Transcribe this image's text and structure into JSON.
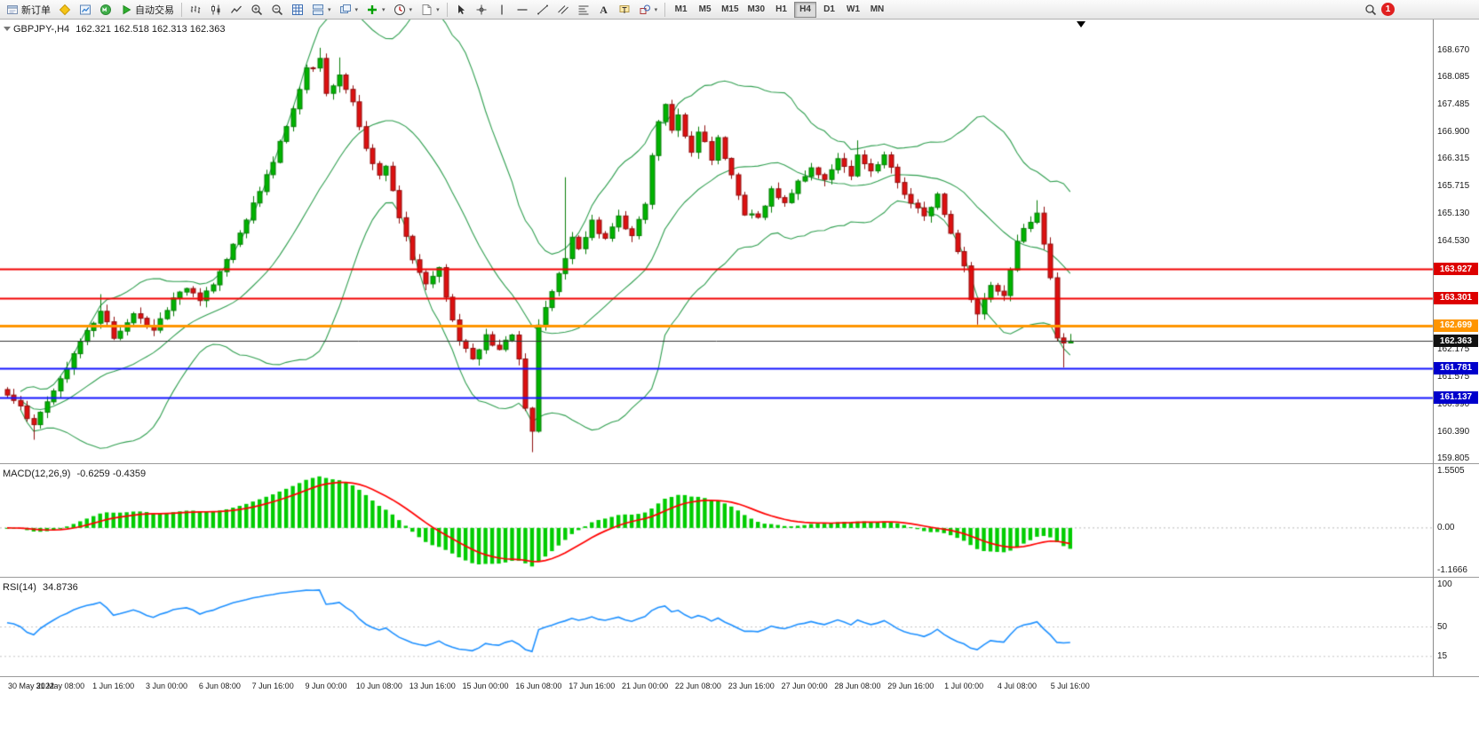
{
  "toolbar": {
    "new_order_label": "新订单",
    "auto_trading_label": "自动交易",
    "timeframes": [
      "M1",
      "M5",
      "M15",
      "M30",
      "H1",
      "H4",
      "D1",
      "W1",
      "MN"
    ],
    "active_timeframe": "H4",
    "notification_count": "1",
    "icons": [
      "new-order",
      "metaeditor",
      "market-watch",
      "mql5",
      "auto-trading",
      "bar-chart",
      "candlestick-chart",
      "line-chart",
      "zoom-in",
      "zoom-out",
      "grid",
      "tile-windows",
      "cascade-windows",
      "add-indicator",
      "periods",
      "templates",
      "cursor",
      "crosshair",
      "vertical-line",
      "horizontal-line",
      "trendline",
      "channel",
      "fibonacci",
      "text",
      "text-label",
      "shapes",
      "search",
      "notifications"
    ]
  },
  "chart": {
    "symbol_period": "GBPJPY-,H4",
    "ohlc_text": "162.321 162.518 162.313 162.363",
    "macd_name": "MACD(12,26,9)",
    "macd_values": "-0.6259 -0.4359",
    "rsi_name": "RSI(14)",
    "rsi_value": "34.8736"
  },
  "chart_data": {
    "type": "candlestick",
    "symbol": "GBPJPY-",
    "timeframe": "H4",
    "candle_count": 161,
    "ohlc_last": {
      "open": 162.321,
      "high": 162.518,
      "low": 162.313,
      "close": 162.363
    },
    "ylim": [
      159.71,
      169.344
    ],
    "noise_seed": 97,
    "price_waypoints": [
      [
        0,
        161.25
      ],
      [
        2,
        160.9
      ],
      [
        4,
        160.55
      ],
      [
        6,
        161.05
      ],
      [
        9,
        161.8
      ],
      [
        12,
        162.55
      ],
      [
        14,
        163.05
      ],
      [
        16,
        162.4
      ],
      [
        19,
        162.9
      ],
      [
        22,
        162.6
      ],
      [
        25,
        163.3
      ],
      [
        27,
        163.55
      ],
      [
        29,
        163.3
      ],
      [
        31,
        163.6
      ],
      [
        33,
        164.15
      ],
      [
        36,
        165.05
      ],
      [
        39,
        165.95
      ],
      [
        41,
        166.65
      ],
      [
        43,
        167.35
      ],
      [
        45,
        168.25
      ],
      [
        47,
        168.45
      ],
      [
        48,
        167.7
      ],
      [
        50,
        168.15
      ],
      [
        52,
        167.55
      ],
      [
        54,
        166.5
      ],
      [
        56,
        165.95
      ],
      [
        57,
        166.2
      ],
      [
        59,
        165.1
      ],
      [
        61,
        164.15
      ],
      [
        63,
        163.6
      ],
      [
        65,
        163.9
      ],
      [
        66,
        163.35
      ],
      [
        68,
        162.4
      ],
      [
        70,
        162.0
      ],
      [
        72,
        162.45
      ],
      [
        74,
        162.15
      ],
      [
        76,
        162.5
      ],
      [
        77,
        161.95
      ],
      [
        78,
        160.95
      ],
      [
        79,
        160.45
      ],
      [
        80,
        162.75
      ],
      [
        82,
        163.45
      ],
      [
        84,
        164.15
      ],
      [
        85,
        164.6
      ],
      [
        86,
        164.35
      ],
      [
        88,
        164.95
      ],
      [
        90,
        164.55
      ],
      [
        92,
        165.05
      ],
      [
        94,
        164.65
      ],
      [
        96,
        165.35
      ],
      [
        97,
        166.35
      ],
      [
        98,
        167.15
      ],
      [
        99,
        167.5
      ],
      [
        100,
        166.95
      ],
      [
        101,
        167.25
      ],
      [
        103,
        166.45
      ],
      [
        104,
        166.95
      ],
      [
        106,
        166.35
      ],
      [
        107,
        166.75
      ],
      [
        109,
        165.95
      ],
      [
        111,
        165.15
      ],
      [
        113,
        165.0
      ],
      [
        115,
        165.65
      ],
      [
        117,
        165.4
      ],
      [
        119,
        165.8
      ],
      [
        121,
        166.15
      ],
      [
        123,
        165.85
      ],
      [
        125,
        166.3
      ],
      [
        127,
        165.95
      ],
      [
        128,
        166.45
      ],
      [
        130,
        166.05
      ],
      [
        132,
        166.35
      ],
      [
        134,
        165.85
      ],
      [
        136,
        165.35
      ],
      [
        138,
        165.05
      ],
      [
        140,
        165.5
      ],
      [
        142,
        164.65
      ],
      [
        144,
        163.95
      ],
      [
        145,
        163.25
      ],
      [
        146,
        162.95
      ],
      [
        148,
        163.55
      ],
      [
        150,
        163.35
      ],
      [
        151,
        163.95
      ],
      [
        152,
        164.55
      ],
      [
        154,
        164.95
      ],
      [
        155,
        165.1
      ],
      [
        156,
        164.45
      ],
      [
        157,
        163.7
      ],
      [
        158,
        162.45
      ],
      [
        159,
        162.05
      ],
      [
        160,
        162.36
      ]
    ],
    "spikes": [
      {
        "i": 4,
        "l": 160.22
      },
      {
        "i": 14,
        "h": 163.38
      },
      {
        "i": 47,
        "h": 168.73
      },
      {
        "i": 50,
        "h": 168.52
      },
      {
        "i": 65,
        "h": 163.98
      },
      {
        "i": 79,
        "l": 159.95
      },
      {
        "i": 84,
        "h": 165.92
      },
      {
        "i": 128,
        "h": 166.72
      },
      {
        "i": 146,
        "l": 162.72
      },
      {
        "i": 155,
        "h": 165.42
      },
      {
        "i": 159,
        "l": 161.79
      }
    ],
    "overlays": {
      "bollinger": {
        "period": 20,
        "deviation": 2,
        "color": "#2f9e4f"
      }
    },
    "colors": {
      "up": "#00b300",
      "up_dark": "#077d07",
      "down": "#dd1111",
      "down_dark": "#8f0f0f",
      "macd_hist": "#00cc00",
      "macd_signal": "#ff0000",
      "rsi": "#1e90ff"
    },
    "hlines": [
      {
        "label": "163.927",
        "v": 163.927,
        "color": "#f00000",
        "tag": "#dd0000",
        "w": 2
      },
      {
        "label": "163.301",
        "v": 163.301,
        "color": "#f00000",
        "tag": "#dd0000",
        "w": 2
      },
      {
        "label": "162.699",
        "v": 162.699,
        "color": "#ff9500",
        "tag": "#ff9500",
        "w": 3
      },
      {
        "label": "162.363",
        "v": 162.363,
        "color": "#333333",
        "tag": "#111111",
        "w": 1
      },
      {
        "label": "161.781",
        "v": 161.781,
        "color": "#1414ff",
        "tag": "#0000cc",
        "w": 2
      },
      {
        "label": "161.137",
        "v": 161.137,
        "color": "#1414ff",
        "tag": "#0000cc",
        "w": 2
      }
    ],
    "price_axis_ticks": [
      "168.670",
      "168.085",
      "167.485",
      "166.900",
      "166.315",
      "165.715",
      "165.130",
      "164.530",
      "162.175",
      "161.575",
      "160.990",
      "160.390",
      "159.805"
    ],
    "macd_axis": [
      {
        "label": "1.5505",
        "v": 1.5505
      },
      {
        "label": "0.00",
        "v": 0
      },
      {
        "label": "-1.1666",
        "v": -1.1666
      }
    ],
    "rsi_axis": [
      {
        "label": "100",
        "v": 100
      },
      {
        "label": "50",
        "v": 50
      },
      {
        "label": "15",
        "v": 15
      }
    ],
    "rsi_levels": [
      50,
      15
    ],
    "time_axis": [
      {
        "t": "30 May 2022",
        "i": 0
      },
      {
        "t": "31 May 08:00",
        "i": 8
      },
      {
        "t": "1 Jun 16:00",
        "i": 16
      },
      {
        "t": "3 Jun 00:00",
        "i": 24
      },
      {
        "t": "6 Jun 08:00",
        "i": 32
      },
      {
        "t": "7 Jun 16:00",
        "i": 40
      },
      {
        "t": "9 Jun 00:00",
        "i": 48
      },
      {
        "t": "10 Jun 08:00",
        "i": 56
      },
      {
        "t": "13 Jun 16:00",
        "i": 64
      },
      {
        "t": "15 Jun 00:00",
        "i": 72
      },
      {
        "t": "16 Jun 08:00",
        "i": 80
      },
      {
        "t": "17 Jun 16:00",
        "i": 88
      },
      {
        "t": "21 Jun 00:00",
        "i": 96
      },
      {
        "t": "22 Jun 08:00",
        "i": 104
      },
      {
        "t": "23 Jun 16:00",
        "i": 112
      },
      {
        "t": "27 Jun 00:00",
        "i": 120
      },
      {
        "t": "28 Jun 08:00",
        "i": 128
      },
      {
        "t": "29 Jun 16:00",
        "i": 136
      },
      {
        "t": "1 Jul 00:00",
        "i": 144
      },
      {
        "t": "4 Jul 08:00",
        "i": 152
      },
      {
        "t": "5 Jul 16:00",
        "i": 160
      }
    ]
  }
}
